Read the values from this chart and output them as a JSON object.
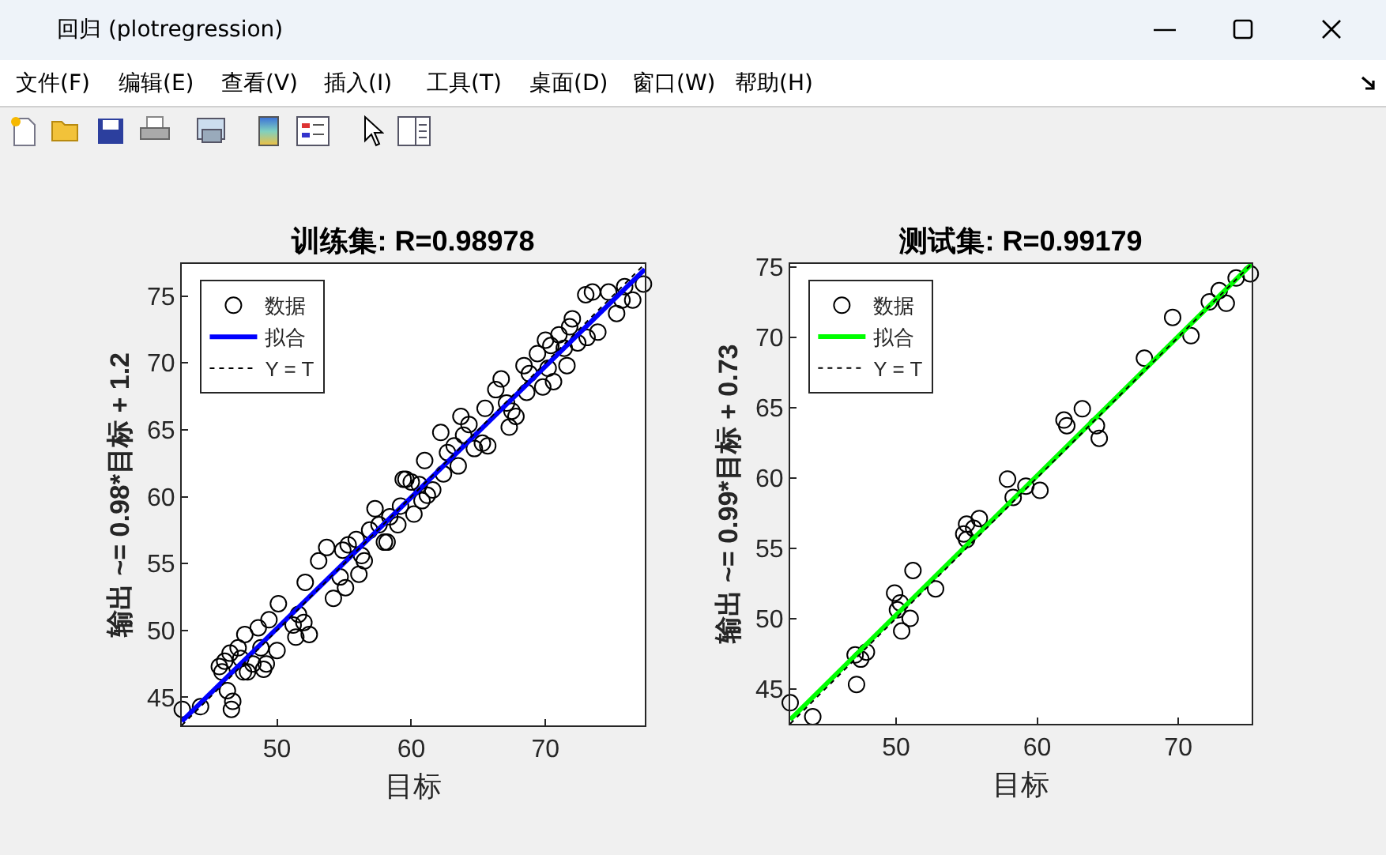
{
  "chart_data": [
    {
      "type": "scatter",
      "title": "训练集: R=0.98978",
      "xlabel": "目标",
      "ylabel": "输出 ~= 0.98*目标 + 1.2",
      "annotations": [
        "回归 (plotregression)",
        "文件(F)",
        "编辑(E)",
        "查看(V)",
        "插入(I)",
        "工具(T)",
        "桌面(D)",
        "窗口(W)",
        "帮助(H)"
      ],
      "xlim": [
        42.9,
        77.4
      ],
      "ylim": [
        42.9,
        77.4
      ],
      "xticks": [
        50,
        60,
        70
      ],
      "yticks": [
        45,
        50,
        55,
        60,
        65,
        70,
        75
      ],
      "legend": "top left",
      "series": [
        {
          "name": "数据",
          "type": "scatter",
          "color": "#000000",
          "marker": "circle",
          "x": [
            42.94,
            44.3,
            46.6,
            46.7,
            46.3,
            45.7,
            46.1,
            46.5,
            47.1,
            47.3,
            47.6,
            47.8,
            48.2,
            48.6,
            48.8,
            49.0,
            49.4,
            50.0,
            50.1,
            51.4,
            51.6,
            52.0,
            52.4,
            52.1,
            53.1,
            53.7,
            54.2,
            54.7,
            55.1,
            54.9,
            55.3,
            55.9,
            56.1,
            56.5,
            56.9,
            57.3,
            57.6,
            58.2,
            58.4,
            59.0,
            59.2,
            59.6,
            60.0,
            60.2,
            60.8,
            61.0,
            61.2,
            62.2,
            62.4,
            62.7,
            63.2,
            63.5,
            63.7,
            64.3,
            64.7,
            65.3,
            65.7,
            65.5,
            66.7,
            67.1,
            67.3,
            67.5,
            67.8,
            68.4,
            68.6,
            69.4,
            69.8,
            70.0,
            70.2,
            70.6,
            71.0,
            71.6,
            71.4,
            72.0,
            72.4,
            73.0,
            73.1,
            73.5,
            73.9,
            74.7,
            75.3,
            75.7,
            75.9,
            76.5,
            77.3,
            45.9,
            47.5,
            49.2,
            51.2,
            56.3,
            58.0,
            59.4,
            60.6,
            61.6,
            63.9,
            66.3,
            68.8,
            70.4,
            71.8
          ],
          "values": [
            44.1,
            44.3,
            44.1,
            44.7,
            45.5,
            47.3,
            47.7,
            48.3,
            48.7,
            47.9,
            49.7,
            46.9,
            47.5,
            50.2,
            48.7,
            47.1,
            50.8,
            48.5,
            52.0,
            49.5,
            51.2,
            50.6,
            49.7,
            53.6,
            55.2,
            56.2,
            52.4,
            54.0,
            53.2,
            56.0,
            56.4,
            56.8,
            54.2,
            55.2,
            57.5,
            59.1,
            57.9,
            56.6,
            58.5,
            57.9,
            59.3,
            61.3,
            61.1,
            58.7,
            59.7,
            62.7,
            60.1,
            64.8,
            61.7,
            63.3,
            63.8,
            62.3,
            66.0,
            65.4,
            63.6,
            64.0,
            63.8,
            66.6,
            68.8,
            67.0,
            65.2,
            66.4,
            66.0,
            69.8,
            67.8,
            70.7,
            68.2,
            71.7,
            69.6,
            68.6,
            72.1,
            69.8,
            71.1,
            73.3,
            71.5,
            75.1,
            71.9,
            75.3,
            72.3,
            75.3,
            73.7,
            74.7,
            75.7,
            74.7,
            75.9,
            46.9,
            46.9,
            47.5,
            50.4,
            55.6,
            56.6,
            61.3,
            60.9,
            60.5,
            64.6,
            68.0,
            69.2,
            71.3,
            72.7
          ]
        },
        {
          "name": "拟合",
          "type": "line",
          "color": "#0000ff",
          "x": [
            42.9,
            77.4
          ],
          "values": [
            43.2,
            77.0
          ]
        },
        {
          "name": "Y = T",
          "type": "line",
          "color": "#000000",
          "line_style": "dotted",
          "x": [
            42.9,
            77.4
          ],
          "values": [
            42.9,
            77.4
          ]
        }
      ]
    },
    {
      "type": "scatter",
      "title": "测试集: R=0.99179",
      "xlabel": "目标",
      "ylabel": "输出 ~= 0.99*目标 + 0.73",
      "xlim": [
        42.5,
        75.2
      ],
      "ylim": [
        42.5,
        75.2
      ],
      "xticks": [
        50,
        60,
        70
      ],
      "yticks": [
        45,
        50,
        55,
        60,
        65,
        70,
        75
      ],
      "legend": "top left",
      "series": [
        {
          "name": "数据",
          "type": "scatter",
          "color": "#000000",
          "marker": "circle",
          "x": [
            42.5,
            44.1,
            47.2,
            47.1,
            47.5,
            47.9,
            49.9,
            50.3,
            50.1,
            50.4,
            51.0,
            51.2,
            52.8,
            54.8,
            55.0,
            55.0,
            55.5,
            55.9,
            57.9,
            58.3,
            59.2,
            60.2,
            61.9,
            62.1,
            63.2,
            64.2,
            64.4,
            67.6,
            69.6,
            70.9,
            72.2,
            72.9,
            73.4,
            74.1,
            75.1
          ],
          "values": [
            44.0,
            43.0,
            45.3,
            47.4,
            47.1,
            47.6,
            51.8,
            51.1,
            50.6,
            49.1,
            50.0,
            53.4,
            52.1,
            56.0,
            55.6,
            56.7,
            56.4,
            57.1,
            59.9,
            58.6,
            59.4,
            59.1,
            64.1,
            63.7,
            64.9,
            63.7,
            62.8,
            68.5,
            71.4,
            70.1,
            72.5,
            73.3,
            72.4,
            74.2,
            74.5
          ]
        },
        {
          "name": "拟合",
          "type": "line",
          "color": "#00ff00",
          "x": [
            42.5,
            75.2
          ],
          "values": [
            42.8,
            75.2
          ]
        },
        {
          "name": "Y = T",
          "type": "line",
          "color": "#000000",
          "line_style": "dotted",
          "x": [
            42.5,
            75.2
          ],
          "values": [
            42.5,
            75.2
          ]
        }
      ]
    }
  ]
}
